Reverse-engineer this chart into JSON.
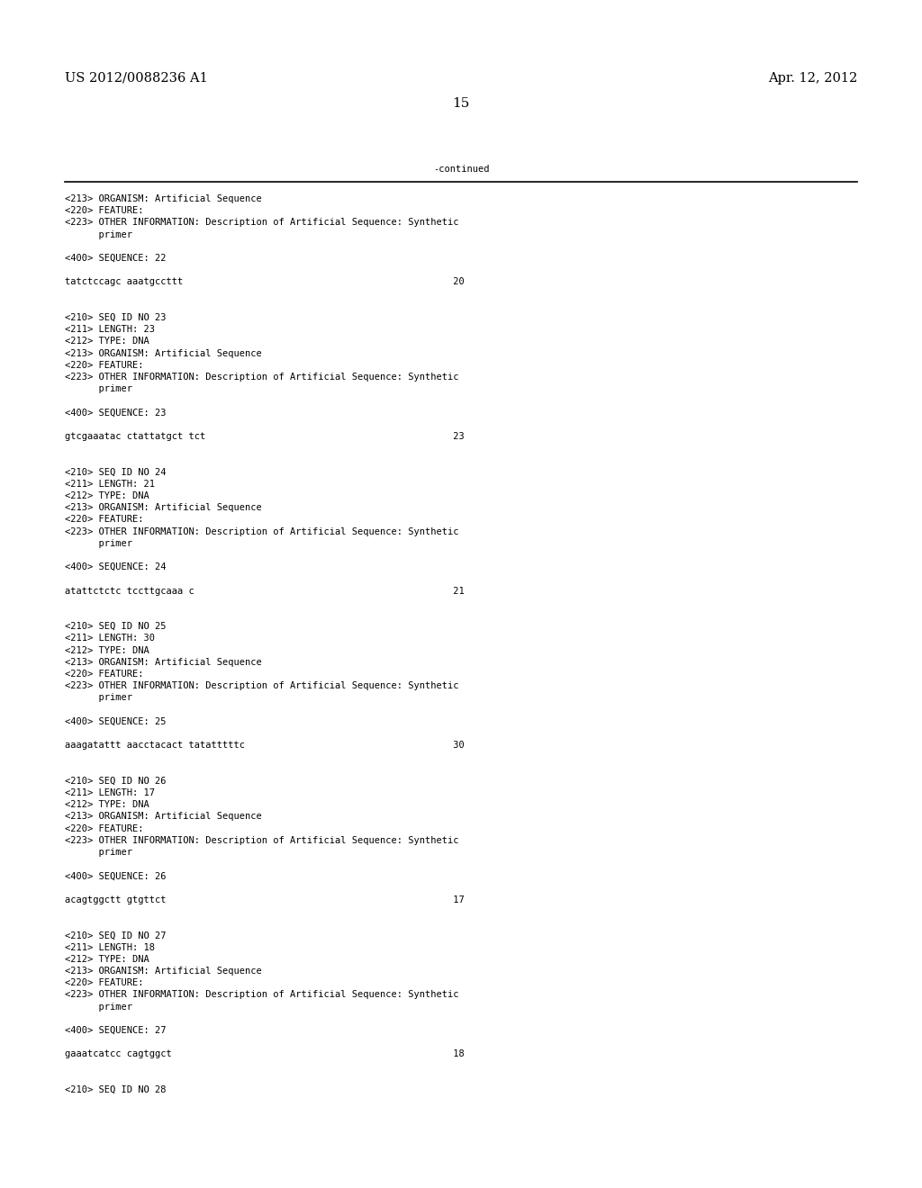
{
  "background_color": "#ffffff",
  "header_left": "US 2012/0088236 A1",
  "header_right": "Apr. 12, 2012",
  "page_number": "15",
  "continued_text": "-continued",
  "monospace_fontsize": 7.5,
  "header_fontsize": 10.5,
  "page_num_fontsize": 11,
  "fig_width": 10.24,
  "fig_height": 13.2,
  "dpi": 100,
  "content": [
    "<213> ORGANISM: Artificial Sequence",
    "<220> FEATURE:",
    "<223> OTHER INFORMATION: Description of Artificial Sequence: Synthetic",
    "      primer",
    "",
    "<400> SEQUENCE: 22",
    "",
    "tatctccagc aaatgccttt                                                20",
    "",
    "",
    "<210> SEQ ID NO 23",
    "<211> LENGTH: 23",
    "<212> TYPE: DNA",
    "<213> ORGANISM: Artificial Sequence",
    "<220> FEATURE:",
    "<223> OTHER INFORMATION: Description of Artificial Sequence: Synthetic",
    "      primer",
    "",
    "<400> SEQUENCE: 23",
    "",
    "gtcgaaatac ctattatgct tct                                            23",
    "",
    "",
    "<210> SEQ ID NO 24",
    "<211> LENGTH: 21",
    "<212> TYPE: DNA",
    "<213> ORGANISM: Artificial Sequence",
    "<220> FEATURE:",
    "<223> OTHER INFORMATION: Description of Artificial Sequence: Synthetic",
    "      primer",
    "",
    "<400> SEQUENCE: 24",
    "",
    "atattctctc tccttgcaaa c                                              21",
    "",
    "",
    "<210> SEQ ID NO 25",
    "<211> LENGTH: 30",
    "<212> TYPE: DNA",
    "<213> ORGANISM: Artificial Sequence",
    "<220> FEATURE:",
    "<223> OTHER INFORMATION: Description of Artificial Sequence: Synthetic",
    "      primer",
    "",
    "<400> SEQUENCE: 25",
    "",
    "aaagatattt aacctacact tatatttttc                                     30",
    "",
    "",
    "<210> SEQ ID NO 26",
    "<211> LENGTH: 17",
    "<212> TYPE: DNA",
    "<213> ORGANISM: Artificial Sequence",
    "<220> FEATURE:",
    "<223> OTHER INFORMATION: Description of Artificial Sequence: Synthetic",
    "      primer",
    "",
    "<400> SEQUENCE: 26",
    "",
    "acagtggctt gtgttct                                                   17",
    "",
    "",
    "<210> SEQ ID NO 27",
    "<211> LENGTH: 18",
    "<212> TYPE: DNA",
    "<213> ORGANISM: Artificial Sequence",
    "<220> FEATURE:",
    "<223> OTHER INFORMATION: Description of Artificial Sequence: Synthetic",
    "      primer",
    "",
    "<400> SEQUENCE: 27",
    "",
    "gaaatcatcc cagtggct                                                  18",
    "",
    "",
    "<210> SEQ ID NO 28"
  ]
}
